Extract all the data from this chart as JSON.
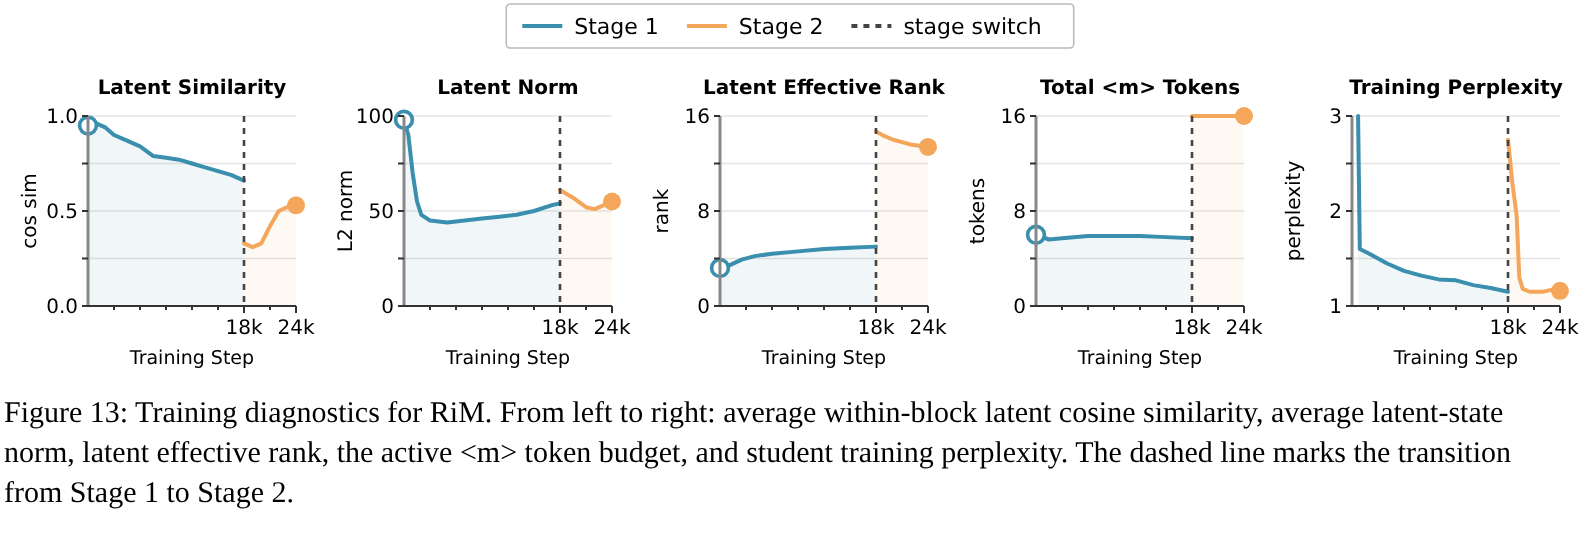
{
  "chart_data": [
    {
      "type": "area",
      "title": "Latent Similarity",
      "xlabel": "Training Step",
      "ylabel": "cos sim",
      "xlim": [
        0,
        24000
      ],
      "ylim": [
        0,
        1
      ],
      "xticks": [
        {
          "value": 3000,
          "label": null
        },
        {
          "value": 6000,
          "label": null
        },
        {
          "value": 9000,
          "label": null
        },
        {
          "value": 12000,
          "label": null
        },
        {
          "value": 15000,
          "label": null
        },
        {
          "value": 18000,
          "label": "18k"
        },
        {
          "value": 21000,
          "label": null
        },
        {
          "value": 24000,
          "label": "24k"
        }
      ],
      "yticks": [
        {
          "value": 0,
          "label": "0.0"
        },
        {
          "value": 0.25,
          "label": null
        },
        {
          "value": 0.5,
          "label": "0.5"
        },
        {
          "value": 0.75,
          "label": null
        },
        {
          "value": 1,
          "label": "1.0"
        }
      ],
      "grid": "y",
      "legend": "top",
      "series": [
        {
          "type": "scatter",
          "marker": "circle",
          "color": "#3a8eae",
          "x": [
            0
          ],
          "values": [
            0.95
          ]
        },
        {
          "name": "Stage 1",
          "color": "#3a8eae",
          "x": [
            0,
            1000,
            2000,
            3000,
            4500,
            6000,
            7500,
            9000,
            10500,
            12000,
            13500,
            15000,
            16500,
            18000
          ],
          "values": [
            0.95,
            0.96,
            0.94,
            0.9,
            0.87,
            0.84,
            0.79,
            0.78,
            0.77,
            0.75,
            0.73,
            0.71,
            0.69,
            0.66
          ]
        },
        {
          "name": "Stage 2",
          "color": "#f4a65a",
          "x": [
            18000,
            19000,
            20000,
            21000,
            22000,
            23000,
            24000
          ],
          "values": [
            0.33,
            0.31,
            0.33,
            0.42,
            0.5,
            0.52,
            0.53
          ]
        },
        {
          "type": "scatter",
          "marker": "circle",
          "color": "#f4a65a",
          "x": [
            24000
          ],
          "values": [
            0.53
          ]
        }
      ],
      "ref_lines": [
        {
          "axis": "x",
          "value": 18000,
          "label": "stage switch",
          "line_style": "dashed",
          "color": "#444444"
        }
      ],
      "annotations": [
        "Figure 13: Training diagnostics for RiM. From left to right: average within-block latent cosine similarity, average latent-state norm, latent effective rank, the active <m> token budget, and student training perplexity. The dashed line marks the transition from Stage 1 to Stage 2."
      ]
    },
    {
      "type": "area",
      "title": "Latent Norm",
      "xlabel": "Training Step",
      "ylabel": "L2 norm",
      "xlim": [
        0,
        24000
      ],
      "ylim": [
        0,
        100
      ],
      "xticks": [
        {
          "value": 3000,
          "label": null
        },
        {
          "value": 6000,
          "label": null
        },
        {
          "value": 9000,
          "label": null
        },
        {
          "value": 12000,
          "label": null
        },
        {
          "value": 15000,
          "label": null
        },
        {
          "value": 18000,
          "label": "18k"
        },
        {
          "value": 21000,
          "label": null
        },
        {
          "value": 24000,
          "label": "24k"
        }
      ],
      "yticks": [
        0,
        {
          "value": 25,
          "label": null
        },
        50,
        {
          "value": 75,
          "label": null
        },
        100
      ],
      "grid": "y",
      "series": [
        {
          "type": "scatter",
          "marker": "circle",
          "color": "#3a8eae",
          "x": [
            0
          ],
          "values": [
            98
          ]
        },
        {
          "color": "#3a8eae",
          "x": [
            0,
            500,
            1000,
            1500,
            2000,
            3000,
            5000,
            7000,
            9000,
            11000,
            13000,
            15000,
            17000,
            18000
          ],
          "values": [
            98,
            90,
            70,
            55,
            48,
            45,
            44,
            45,
            46,
            47,
            48,
            50,
            53,
            54
          ]
        },
        {
          "color": "#f4a65a",
          "x": [
            18000,
            19500,
            21000,
            22000,
            23000,
            24000
          ],
          "values": [
            61,
            57,
            52,
            51,
            53,
            55
          ]
        },
        {
          "type": "scatter",
          "marker": "circle",
          "color": "#f4a65a",
          "x": [
            24000
          ],
          "values": [
            55
          ]
        }
      ],
      "ref_lines": [
        {
          "axis": "x",
          "value": 18000,
          "line_style": "dashed",
          "color": "#444444"
        }
      ]
    },
    {
      "type": "area",
      "title": "Latent Effective Rank",
      "xlabel": "Training Step",
      "ylabel": "rank",
      "xlim": [
        0,
        24000
      ],
      "ylim": [
        0,
        16
      ],
      "xticks": [
        {
          "value": 3000,
          "label": null
        },
        {
          "value": 6000,
          "label": null
        },
        {
          "value": 9000,
          "label": null
        },
        {
          "value": 12000,
          "label": null
        },
        {
          "value": 15000,
          "label": null
        },
        {
          "value": 18000,
          "label": "18k"
        },
        {
          "value": 21000,
          "label": null
        },
        {
          "value": 24000,
          "label": "24k"
        }
      ],
      "yticks": [
        0,
        {
          "value": 4,
          "label": null
        },
        8,
        {
          "value": 12,
          "label": null
        },
        16
      ],
      "grid": "y",
      "series": [
        {
          "type": "scatter",
          "marker": "circle",
          "color": "#3a8eae",
          "x": [
            0
          ],
          "values": [
            3.2
          ]
        },
        {
          "color": "#3a8eae",
          "x": [
            0,
            1000,
            2500,
            4000,
            6000,
            9000,
            12000,
            15000,
            18000
          ],
          "values": [
            3.2,
            3.4,
            3.9,
            4.2,
            4.4,
            4.6,
            4.8,
            4.9,
            5.0
          ]
        },
        {
          "color": "#f4a65a",
          "x": [
            18000,
            19000,
            20000,
            21000,
            22000,
            23000,
            24000
          ],
          "values": [
            14.7,
            14.3,
            14.0,
            13.8,
            13.6,
            13.5,
            13.4
          ]
        },
        {
          "type": "scatter",
          "marker": "circle",
          "color": "#f4a65a",
          "x": [
            24000
          ],
          "values": [
            13.4
          ]
        }
      ],
      "ref_lines": [
        {
          "axis": "x",
          "value": 18000,
          "line_style": "dashed",
          "color": "#444444"
        }
      ]
    },
    {
      "type": "area",
      "title": "Total <m> Tokens",
      "xlabel": "Training Step",
      "ylabel": "tokens",
      "xlim": [
        0,
        24000
      ],
      "ylim": [
        0,
        16
      ],
      "xticks": [
        {
          "value": 3000,
          "label": null
        },
        {
          "value": 6000,
          "label": null
        },
        {
          "value": 9000,
          "label": null
        },
        {
          "value": 12000,
          "label": null
        },
        {
          "value": 15000,
          "label": null
        },
        {
          "value": 18000,
          "label": "18k"
        },
        {
          "value": 21000,
          "label": null
        },
        {
          "value": 24000,
          "label": "24k"
        }
      ],
      "yticks": [
        0,
        {
          "value": 4,
          "label": null
        },
        8,
        {
          "value": 12,
          "label": null
        },
        16
      ],
      "grid": "y",
      "series": [
        {
          "type": "scatter",
          "marker": "circle",
          "color": "#3a8eae",
          "x": [
            0
          ],
          "values": [
            6.0
          ]
        },
        {
          "color": "#3a8eae",
          "x": [
            0,
            1500,
            3000,
            6000,
            9000,
            12000,
            15000,
            18000
          ],
          "values": [
            6.0,
            5.6,
            5.7,
            5.9,
            5.9,
            5.9,
            5.8,
            5.7
          ]
        },
        {
          "color": "#f4a65a",
          "x": [
            18000,
            24000
          ],
          "values": [
            16,
            16
          ]
        },
        {
          "type": "scatter",
          "marker": "circle",
          "color": "#f4a65a",
          "x": [
            24000
          ],
          "values": [
            16
          ]
        }
      ],
      "ref_lines": [
        {
          "axis": "x",
          "value": 18000,
          "line_style": "dashed",
          "color": "#444444"
        }
      ]
    },
    {
      "type": "area",
      "title": "Training Perplexity",
      "xlabel": "Training Step",
      "ylabel": "perplexity",
      "xlim": [
        0,
        24000
      ],
      "ylim": [
        1,
        3
      ],
      "xticks": [
        {
          "value": 3000,
          "label": null
        },
        {
          "value": 6000,
          "label": null
        },
        {
          "value": 9000,
          "label": null
        },
        {
          "value": 12000,
          "label": null
        },
        {
          "value": 15000,
          "label": null
        },
        {
          "value": 18000,
          "label": "18k"
        },
        {
          "value": 21000,
          "label": null
        },
        {
          "value": 24000,
          "label": "24k"
        }
      ],
      "yticks": [
        1,
        {
          "value": 1.5,
          "label": null
        },
        2,
        {
          "value": 2.5,
          "label": null
        },
        3
      ],
      "grid": "y",
      "series": [
        {
          "color": "#3a8eae",
          "x": [
            700,
            900,
            2000,
            4000,
            6000,
            8000,
            10000,
            12000,
            14000,
            16000,
            18000
          ],
          "values": [
            3,
            1.6,
            1.55,
            1.45,
            1.37,
            1.32,
            1.28,
            1.27,
            1.22,
            1.19,
            1.15
          ]
        },
        {
          "color": "#f4a65a",
          "x": [
            18000,
            18500,
            19000,
            19300,
            19700,
            20500,
            22000,
            23000,
            24000
          ],
          "values": [
            2.75,
            2.3,
            1.95,
            1.3,
            1.18,
            1.15,
            1.15,
            1.17,
            1.16
          ]
        },
        {
          "type": "scatter",
          "marker": "circle",
          "color": "#f4a65a",
          "x": [
            24000
          ],
          "values": [
            1.16
          ]
        }
      ],
      "ref_lines": [
        {
          "axis": "x",
          "value": 18000,
          "line_style": "dashed",
          "color": "#444444"
        }
      ]
    }
  ]
}
